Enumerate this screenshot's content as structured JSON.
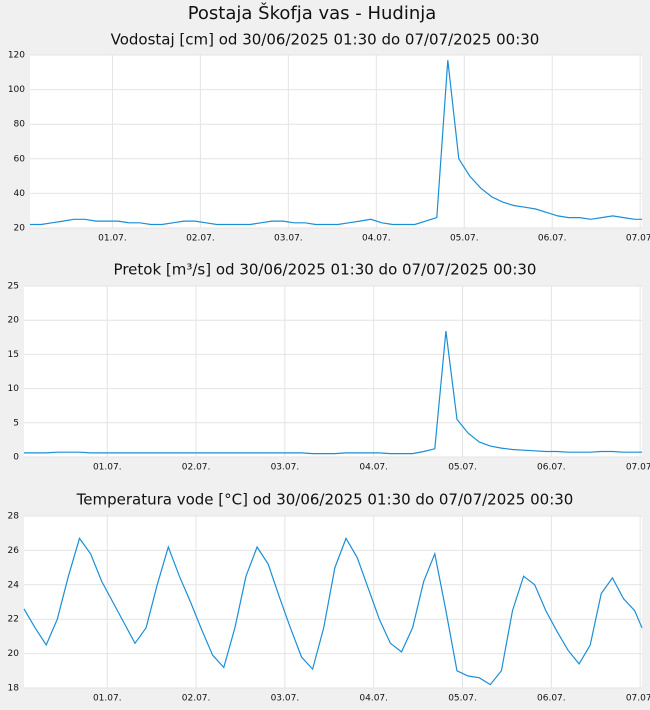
{
  "title": "Postaja Škofja vas - Hudinja",
  "chart_data": [
    {
      "type": "line",
      "title": "Vodostaj [cm] od 30/06/2025 01:30 do 07/07/2025 00:30",
      "color": "#1a8fd6",
      "grid": true,
      "xlim": [
        0.0625,
        7.0208
      ],
      "ylim": [
        20,
        120
      ],
      "yticks": [
        20,
        40,
        60,
        80,
        100,
        120
      ],
      "xticks": [
        {
          "value": 1,
          "label": "01.07."
        },
        {
          "value": 2,
          "label": "02.07."
        },
        {
          "value": 3,
          "label": "03.07."
        },
        {
          "value": 4,
          "label": "04.07."
        },
        {
          "value": 5,
          "label": "05.07."
        },
        {
          "value": 6,
          "label": "06.07."
        },
        {
          "value": 7,
          "label": "07.07."
        }
      ],
      "x": [
        0.0625,
        0.1875,
        0.3125,
        0.4375,
        0.5625,
        0.6875,
        0.8125,
        0.9375,
        1.0625,
        1.1875,
        1.3125,
        1.4375,
        1.5625,
        1.6875,
        1.8125,
        1.9375,
        2.0625,
        2.1875,
        2.3125,
        2.4375,
        2.5625,
        2.6875,
        2.8125,
        2.9375,
        3.0625,
        3.1875,
        3.3125,
        3.4375,
        3.5625,
        3.6875,
        3.8125,
        3.9375,
        4.0625,
        4.1875,
        4.3125,
        4.4375,
        4.5625,
        4.6875,
        4.8125,
        4.9375,
        5.0625,
        5.1875,
        5.3125,
        5.4375,
        5.5625,
        5.6875,
        5.8125,
        5.9375,
        6.0625,
        6.1875,
        6.3125,
        6.4375,
        6.5625,
        6.6875,
        6.8125,
        6.9375,
        7.0208
      ],
      "values": [
        22,
        22,
        23,
        24,
        25,
        25,
        24,
        24,
        24,
        23,
        23,
        22,
        22,
        23,
        24,
        24,
        23,
        22,
        22,
        22,
        22,
        23,
        24,
        24,
        23,
        23,
        22,
        22,
        22,
        23,
        24,
        25,
        23,
        22,
        22,
        22,
        24,
        26,
        117,
        60,
        50,
        43,
        38,
        35,
        33,
        32,
        31,
        29,
        27,
        26,
        26,
        25,
        26,
        27,
        26,
        25,
        25
      ]
    },
    {
      "type": "line",
      "title": "Pretok [m³/s] od 30/06/2025 01:30 do 07/07/2025 00:30",
      "color": "#1a8fd6",
      "grid": true,
      "xlim": [
        0.0625,
        7.0208
      ],
      "ylim": [
        0,
        25
      ],
      "yticks": [
        0,
        5,
        10,
        15,
        20,
        25
      ],
      "xticks": [
        {
          "value": 1,
          "label": "01.07."
        },
        {
          "value": 2,
          "label": "02.07."
        },
        {
          "value": 3,
          "label": "03.07."
        },
        {
          "value": 4,
          "label": "04.07."
        },
        {
          "value": 5,
          "label": "05.07."
        },
        {
          "value": 6,
          "label": "06.07."
        },
        {
          "value": 7,
          "label": "07.07."
        }
      ],
      "x": [
        0.0625,
        0.1875,
        0.3125,
        0.4375,
        0.5625,
        0.6875,
        0.8125,
        0.9375,
        1.0625,
        1.1875,
        1.3125,
        1.4375,
        1.5625,
        1.6875,
        1.8125,
        1.9375,
        2.0625,
        2.1875,
        2.3125,
        2.4375,
        2.5625,
        2.6875,
        2.8125,
        2.9375,
        3.0625,
        3.1875,
        3.3125,
        3.4375,
        3.5625,
        3.6875,
        3.8125,
        3.9375,
        4.0625,
        4.1875,
        4.3125,
        4.4375,
        4.5625,
        4.6875,
        4.8125,
        4.9375,
        5.0625,
        5.1875,
        5.3125,
        5.4375,
        5.5625,
        5.6875,
        5.8125,
        5.9375,
        6.0625,
        6.1875,
        6.3125,
        6.4375,
        6.5625,
        6.6875,
        6.8125,
        6.9375,
        7.0208
      ],
      "values": [
        0.6,
        0.6,
        0.6,
        0.7,
        0.7,
        0.7,
        0.6,
        0.6,
        0.6,
        0.6,
        0.6,
        0.6,
        0.6,
        0.6,
        0.6,
        0.6,
        0.6,
        0.6,
        0.6,
        0.6,
        0.6,
        0.6,
        0.6,
        0.6,
        0.6,
        0.6,
        0.5,
        0.5,
        0.5,
        0.6,
        0.6,
        0.6,
        0.6,
        0.5,
        0.5,
        0.5,
        0.8,
        1.2,
        18.4,
        5.5,
        3.5,
        2.2,
        1.6,
        1.3,
        1.1,
        1.0,
        0.9,
        0.8,
        0.8,
        0.7,
        0.7,
        0.7,
        0.8,
        0.8,
        0.7,
        0.7,
        0.7
      ]
    },
    {
      "type": "line",
      "title": "Temperatura vode [°C] od 30/06/2025 01:30 do 07/07/2025 00:30",
      "color": "#1a8fd6",
      "grid": true,
      "xlim": [
        0.0625,
        7.0208
      ],
      "ylim": [
        18,
        28
      ],
      "yticks": [
        18,
        20,
        22,
        24,
        26,
        28
      ],
      "xticks": [
        {
          "value": 1,
          "label": "01.07."
        },
        {
          "value": 2,
          "label": "02.07."
        },
        {
          "value": 3,
          "label": "03.07."
        },
        {
          "value": 4,
          "label": "04.07."
        },
        {
          "value": 5,
          "label": "05.07."
        },
        {
          "value": 6,
          "label": "06.07."
        },
        {
          "value": 7,
          "label": "07.07."
        }
      ],
      "x": [
        0.0625,
        0.1875,
        0.3125,
        0.4375,
        0.5625,
        0.6875,
        0.8125,
        0.9375,
        1.0625,
        1.1875,
        1.3125,
        1.4375,
        1.5625,
        1.6875,
        1.8125,
        1.9375,
        2.0625,
        2.1875,
        2.3125,
        2.4375,
        2.5625,
        2.6875,
        2.8125,
        2.9375,
        3.0625,
        3.1875,
        3.3125,
        3.4375,
        3.5625,
        3.6875,
        3.8125,
        3.9375,
        4.0625,
        4.1875,
        4.3125,
        4.4375,
        4.5625,
        4.6875,
        4.8125,
        4.9375,
        5.0625,
        5.1875,
        5.3125,
        5.4375,
        5.5625,
        5.6875,
        5.8125,
        5.9375,
        6.0625,
        6.1875,
        6.3125,
        6.4375,
        6.5625,
        6.6875,
        6.8125,
        6.9375,
        7.0208
      ],
      "values": [
        22.6,
        21.5,
        20.5,
        22.0,
        24.5,
        26.7,
        25.8,
        24.2,
        23.0,
        21.8,
        20.6,
        21.5,
        24.0,
        26.2,
        24.5,
        23.0,
        21.4,
        19.9,
        19.2,
        21.5,
        24.5,
        26.2,
        25.2,
        23.3,
        21.5,
        19.8,
        19.1,
        21.5,
        25.0,
        26.7,
        25.6,
        23.8,
        22.0,
        20.6,
        20.1,
        21.5,
        24.2,
        25.8,
        22.5,
        19.0,
        18.7,
        18.6,
        18.2,
        19.0,
        22.5,
        24.5,
        24.0,
        22.5,
        21.3,
        20.2,
        19.4,
        20.5,
        23.5,
        24.4,
        23.2,
        22.5,
        21.5
      ]
    }
  ]
}
